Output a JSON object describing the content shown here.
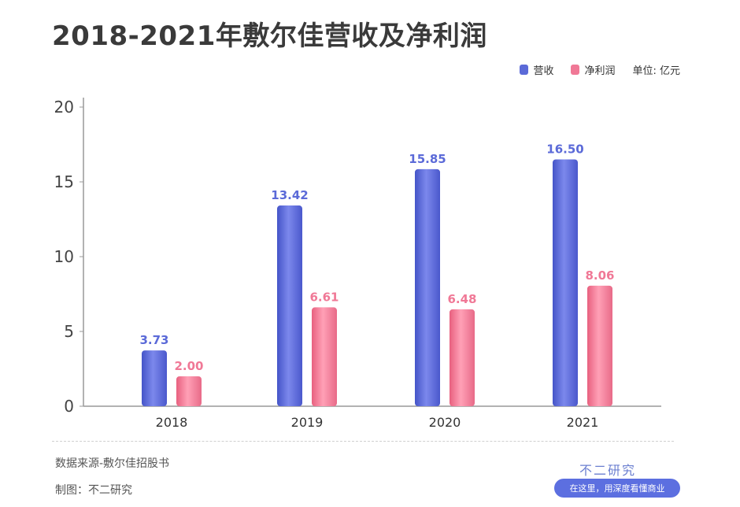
{
  "chart_data": {
    "type": "bar",
    "title": "2018-2021年敷尔佳营收及净利润",
    "categories": [
      "2018",
      "2019",
      "2020",
      "2021"
    ],
    "series": [
      {
        "name": "营收",
        "values": [
          3.73,
          13.42,
          15.85,
          16.5
        ],
        "labels": [
          "3.73",
          "13.42",
          "15.85",
          "16.50"
        ],
        "color": "#5b6ad8"
      },
      {
        "name": "净利润",
        "values": [
          2.0,
          6.61,
          6.48,
          8.06
        ],
        "labels": [
          "2.00",
          "6.61",
          "6.48",
          "8.06"
        ],
        "color": "#f07896"
      }
    ],
    "unit": "单位: 亿元",
    "ylim": [
      0,
      20
    ],
    "yticks": [
      "0",
      "5",
      "10",
      "15",
      "20"
    ],
    "legend_position": "top-right",
    "grid": false
  },
  "footer": {
    "source": "数据来源-敷尔佳招股书",
    "made_by": "制图：不二研究",
    "brand": "不二研究",
    "badge": "在这里，用深度看懂商业"
  }
}
